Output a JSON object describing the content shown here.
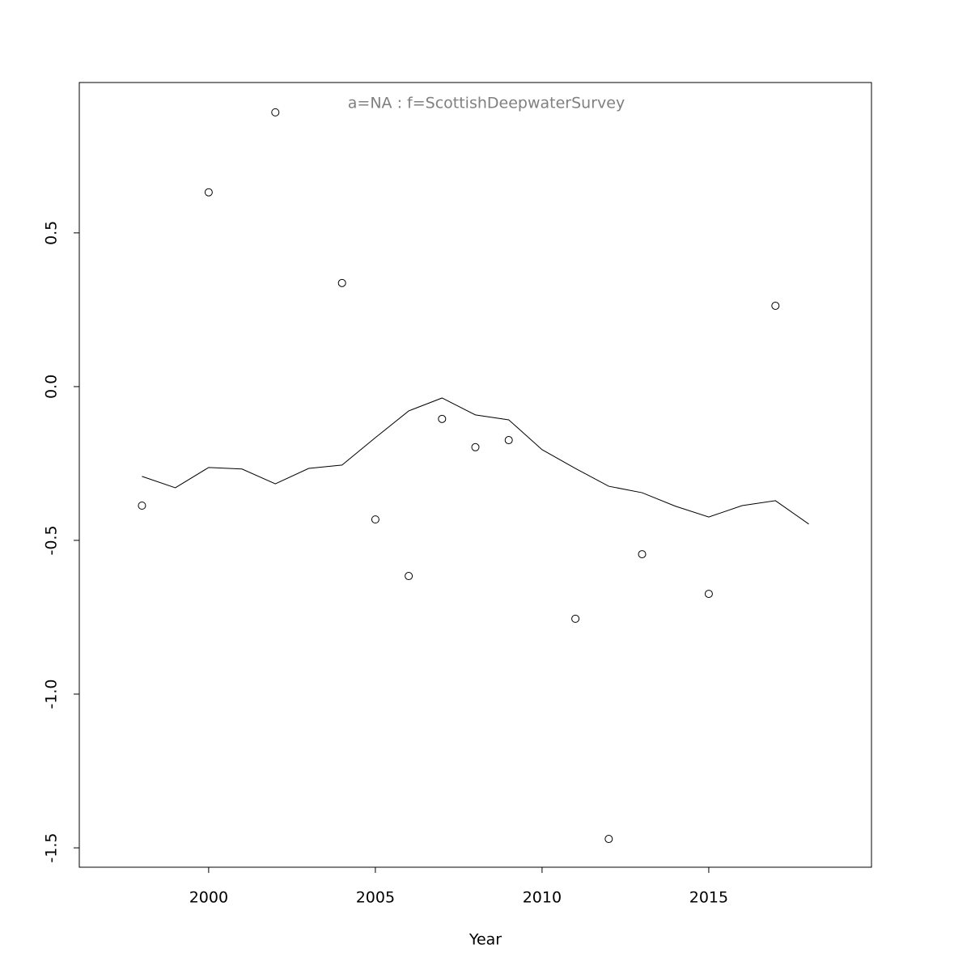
{
  "chart_data": {
    "type": "scatter",
    "title": "a=NA  :  f=ScottishDeepwaterSurvey",
    "x_label": "Year",
    "series": [
      {
        "style": "points",
        "color": "#000000",
        "x": [
          1998,
          2000,
          2002,
          2004,
          2005,
          2006,
          2007,
          2008,
          2009,
          2011,
          2012,
          2013,
          2015,
          2017
        ],
        "values": [
          -0.387,
          0.632,
          0.892,
          0.337,
          -0.432,
          -0.616,
          -0.105,
          -0.197,
          -0.174,
          -0.755,
          -1.471,
          -0.545,
          -0.674,
          0.263
        ]
      },
      {
        "style": "line",
        "color": "#000000",
        "x": [
          1998,
          1999,
          2000,
          2001,
          2002,
          2003,
          2004,
          2005,
          2006,
          2007,
          2008,
          2009,
          2010,
          2011,
          2012,
          2013,
          2014,
          2015,
          2016,
          2017,
          2018
        ],
        "values": [
          -0.292,
          -0.329,
          -0.263,
          -0.268,
          -0.316,
          -0.266,
          -0.255,
          -0.166,
          -0.079,
          -0.037,
          -0.092,
          -0.108,
          -0.205,
          -0.266,
          -0.324,
          -0.345,
          -0.389,
          -0.424,
          -0.387,
          -0.371,
          -0.447
        ]
      }
    ],
    "xlim": [
      1996.12,
      2019.88
    ],
    "ylim": [
      -1.563,
      0.989
    ],
    "xticks": [
      2000,
      2005,
      2010,
      2015
    ],
    "yticks": [
      -1.5,
      {
        "value": -1,
        "label": "-1.0"
      },
      -0.5,
      {
        "value": 0,
        "label": "0.0"
      },
      0.5
    ],
    "title_color": "#808080"
  }
}
